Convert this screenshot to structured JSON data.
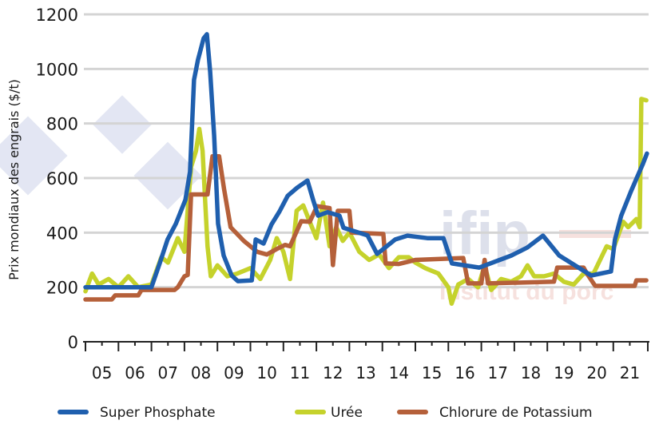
{
  "chart_data": {
    "type": "line",
    "title": "",
    "xlabel": "",
    "ylabel": "Prix mondiaux des engrais ($/t)",
    "ylim": [
      0,
      1200
    ],
    "yticks": [
      0,
      200,
      400,
      600,
      800,
      1000,
      1200
    ],
    "xlim": [
      2005,
      2022.05
    ],
    "xtick_labels": [
      "05",
      "06",
      "07",
      "08",
      "09",
      "10",
      "11",
      "12",
      "13",
      "14",
      "15",
      "16",
      "17",
      "18",
      "19",
      "20",
      "21"
    ],
    "grid": true,
    "legend": "bottom",
    "series": [
      {
        "name": "Super Phosphate",
        "color": "#1f5fae",
        "points": [
          [
            2005.0,
            200
          ],
          [
            2007.0,
            200
          ],
          [
            2007.25,
            287
          ],
          [
            2007.49,
            375
          ],
          [
            2007.74,
            433
          ],
          [
            2008.03,
            520
          ],
          [
            2008.17,
            623
          ],
          [
            2008.29,
            960
          ],
          [
            2008.41,
            1033
          ],
          [
            2008.58,
            1112
          ],
          [
            2008.68,
            1127
          ],
          [
            2008.78,
            990
          ],
          [
            2008.9,
            755
          ],
          [
            2009.02,
            433
          ],
          [
            2009.19,
            316
          ],
          [
            2009.43,
            243
          ],
          [
            2009.62,
            222
          ],
          [
            2010.04,
            225
          ],
          [
            2010.16,
            375
          ],
          [
            2010.4,
            360
          ],
          [
            2010.64,
            430
          ],
          [
            2010.88,
            477
          ],
          [
            2011.13,
            535
          ],
          [
            2011.42,
            565
          ],
          [
            2011.73,
            591
          ],
          [
            2011.9,
            520
          ],
          [
            2012.05,
            462
          ],
          [
            2012.34,
            475
          ],
          [
            2012.7,
            462
          ],
          [
            2012.82,
            418
          ],
          [
            2013.18,
            404
          ],
          [
            2013.55,
            390
          ],
          [
            2013.84,
            322
          ],
          [
            2014.08,
            345
          ],
          [
            2014.39,
            375
          ],
          [
            2014.76,
            389
          ],
          [
            2015.36,
            380
          ],
          [
            2015.85,
            380
          ],
          [
            2016.11,
            287
          ],
          [
            2016.94,
            272
          ],
          [
            2017.91,
            316
          ],
          [
            2018.39,
            345
          ],
          [
            2018.87,
            389
          ],
          [
            2019.36,
            316
          ],
          [
            2020.33,
            243
          ],
          [
            2020.93,
            258
          ],
          [
            2021.05,
            375
          ],
          [
            2021.24,
            462
          ],
          [
            2021.53,
            550
          ],
          [
            2021.9,
            653
          ],
          [
            2022.02,
            690
          ]
        ]
      },
      {
        "name": "Urée",
        "color": "#c5d22c",
        "points": [
          [
            2005.0,
            185
          ],
          [
            2005.2,
            250
          ],
          [
            2005.4,
            210
          ],
          [
            2005.7,
            230
          ],
          [
            2006.0,
            200
          ],
          [
            2006.3,
            240
          ],
          [
            2006.6,
            200
          ],
          [
            2007.0,
            210
          ],
          [
            2007.3,
            310
          ],
          [
            2007.5,
            290
          ],
          [
            2007.8,
            380
          ],
          [
            2008.0,
            330
          ],
          [
            2008.2,
            640
          ],
          [
            2008.35,
            700
          ],
          [
            2008.45,
            780
          ],
          [
            2008.55,
            700
          ],
          [
            2008.7,
            350
          ],
          [
            2008.8,
            240
          ],
          [
            2009.0,
            280
          ],
          [
            2009.3,
            240
          ],
          [
            2009.6,
            250
          ],
          [
            2010.0,
            270
          ],
          [
            2010.3,
            230
          ],
          [
            2010.6,
            300
          ],
          [
            2010.8,
            380
          ],
          [
            2011.0,
            330
          ],
          [
            2011.2,
            230
          ],
          [
            2011.4,
            480
          ],
          [
            2011.6,
            500
          ],
          [
            2011.8,
            440
          ],
          [
            2012.0,
            380
          ],
          [
            2012.2,
            510
          ],
          [
            2012.4,
            350
          ],
          [
            2012.6,
            420
          ],
          [
            2012.8,
            370
          ],
          [
            2013.0,
            400
          ],
          [
            2013.3,
            330
          ],
          [
            2013.6,
            300
          ],
          [
            2013.9,
            320
          ],
          [
            2014.2,
            270
          ],
          [
            2014.5,
            310
          ],
          [
            2014.8,
            310
          ],
          [
            2015.0,
            290
          ],
          [
            2015.3,
            270
          ],
          [
            2015.7,
            250
          ],
          [
            2016.0,
            200
          ],
          [
            2016.1,
            140
          ],
          [
            2016.3,
            210
          ],
          [
            2016.6,
            230
          ],
          [
            2016.9,
            200
          ],
          [
            2017.1,
            280
          ],
          [
            2017.3,
            190
          ],
          [
            2017.6,
            230
          ],
          [
            2017.9,
            220
          ],
          [
            2018.2,
            240
          ],
          [
            2018.4,
            280
          ],
          [
            2018.6,
            240
          ],
          [
            2018.9,
            240
          ],
          [
            2019.2,
            250
          ],
          [
            2019.5,
            220
          ],
          [
            2019.8,
            210
          ],
          [
            2020.1,
            250
          ],
          [
            2020.4,
            250
          ],
          [
            2020.8,
            350
          ],
          [
            2021.0,
            340
          ],
          [
            2021.3,
            440
          ],
          [
            2021.45,
            420
          ],
          [
            2021.7,
            450
          ],
          [
            2021.8,
            420
          ],
          [
            2021.85,
            890
          ],
          [
            2022.0,
            885
          ]
        ]
      },
      {
        "name": "Chlorure de Potassium",
        "color": "#b5603a",
        "points": [
          [
            2005.0,
            155
          ],
          [
            2005.8,
            155
          ],
          [
            2005.9,
            170
          ],
          [
            2006.6,
            170
          ],
          [
            2006.7,
            190
          ],
          [
            2007.7,
            190
          ],
          [
            2007.8,
            200
          ],
          [
            2008.0,
            240
          ],
          [
            2008.1,
            245
          ],
          [
            2008.2,
            540
          ],
          [
            2008.7,
            540
          ],
          [
            2008.85,
            680
          ],
          [
            2009.05,
            680
          ],
          [
            2009.2,
            560
          ],
          [
            2009.4,
            420
          ],
          [
            2009.8,
            370
          ],
          [
            2010.2,
            330
          ],
          [
            2010.5,
            320
          ],
          [
            2010.8,
            340
          ],
          [
            2011.05,
            355
          ],
          [
            2011.2,
            350
          ],
          [
            2011.54,
            442
          ],
          [
            2011.8,
            440
          ],
          [
            2012.02,
            497
          ],
          [
            2012.4,
            490
          ],
          [
            2012.5,
            281
          ],
          [
            2012.65,
            480
          ],
          [
            2013.0,
            480
          ],
          [
            2013.06,
            400
          ],
          [
            2014.03,
            395
          ],
          [
            2014.1,
            287
          ],
          [
            2014.5,
            285
          ],
          [
            2015.0,
            300
          ],
          [
            2016.45,
            307
          ],
          [
            2016.6,
            214
          ],
          [
            2017.0,
            214
          ],
          [
            2017.1,
            300
          ],
          [
            2017.2,
            214
          ],
          [
            2019.2,
            220
          ],
          [
            2019.3,
            272
          ],
          [
            2020.1,
            272
          ],
          [
            2020.2,
            250
          ],
          [
            2020.45,
            205
          ],
          [
            2021.65,
            205
          ],
          [
            2021.7,
            225
          ],
          [
            2022.0,
            225
          ]
        ]
      }
    ]
  },
  "watermark": {
    "logo_left": "3",
    "logo_right": "ifip",
    "logo_right_sub": "Institut du porc"
  }
}
